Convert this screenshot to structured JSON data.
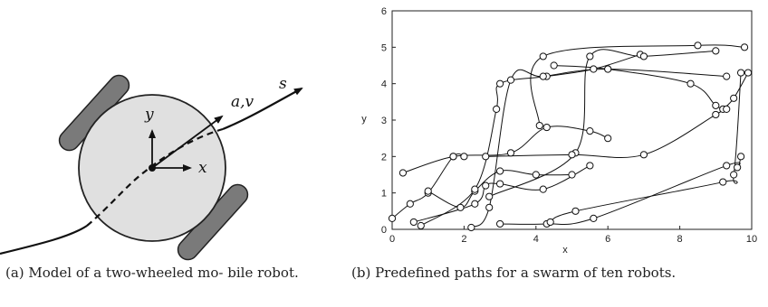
{
  "figure_a": {
    "labels": {
      "y": "y",
      "x": "x",
      "av": "a,v",
      "s": "s"
    },
    "caption": "(a) Model of a two-wheeled mo- bile robot."
  },
  "figure_b": {
    "caption": "(b) Predefined paths for a swarm of ten robots.",
    "chart_data": {
      "type": "line",
      "xlabel": "x",
      "ylabel": "y",
      "xlim": [
        0,
        10
      ],
      "ylim": [
        0,
        6
      ],
      "xticks": [
        0,
        2,
        4,
        6,
        8,
        10
      ],
      "yticks": [
        0,
        1,
        2,
        3,
        4,
        5,
        6
      ],
      "marker": "open-circle",
      "series": [
        {
          "points": [
            [
              0.0,
              0.3
            ],
            [
              0.5,
              0.7
            ],
            [
              1.0,
              1.0
            ],
            [
              1.7,
              2.0
            ],
            [
              2.0,
              2.0
            ]
          ]
        },
        {
          "points": [
            [
              0.3,
              1.55
            ],
            [
              1.7,
              2.0
            ],
            [
              3.3,
              2.1
            ],
            [
              4.3,
              2.8
            ],
            [
              5.5,
              2.7
            ],
            [
              6.0,
              2.5
            ]
          ]
        },
        {
          "points": [
            [
              0.6,
              0.2
            ],
            [
              2.3,
              0.7
            ],
            [
              2.6,
              1.2
            ],
            [
              3.0,
              1.25
            ],
            [
              4.2,
              1.1
            ],
            [
              5.5,
              1.75
            ]
          ]
        },
        {
          "points": [
            [
              1.0,
              1.05
            ],
            [
              1.9,
              0.6
            ],
            [
              2.3,
              1.05
            ],
            [
              3.0,
              1.6
            ],
            [
              4.0,
              1.5
            ],
            [
              5.0,
              1.5
            ]
          ]
        },
        {
          "points": [
            [
              0.8,
              0.1
            ],
            [
              2.3,
              1.1
            ],
            [
              2.9,
              3.3
            ],
            [
              3.0,
              4.0
            ],
            [
              4.3,
              4.2
            ],
            [
              5.6,
              4.4
            ],
            [
              6.9,
              4.8
            ]
          ]
        },
        {
          "points": [
            [
              2.2,
              0.05
            ],
            [
              2.7,
              0.6
            ],
            [
              3.3,
              4.1
            ],
            [
              4.2,
              4.2
            ],
            [
              6.0,
              4.4
            ],
            [
              9.3,
              4.2
            ]
          ]
        },
        {
          "points": [
            [
              3.0,
              0.15
            ],
            [
              4.3,
              0.15
            ],
            [
              5.6,
              0.3
            ],
            [
              9.3,
              1.75
            ],
            [
              9.6,
              1.7
            ],
            [
              9.7,
              2.0
            ]
          ]
        },
        {
          "points": [
            [
              4.4,
              0.2
            ],
            [
              5.1,
              0.5
            ],
            [
              9.2,
              1.3
            ],
            [
              9.5,
              1.5
            ],
            [
              9.7,
              4.3
            ]
          ]
        },
        {
          "points": [
            [
              2.7,
              0.9
            ],
            [
              5.1,
              2.1
            ],
            [
              5.5,
              4.75
            ],
            [
              7.0,
              4.75
            ],
            [
              9.0,
              4.9
            ]
          ]
        },
        {
          "points": [
            [
              4.1,
              2.85
            ],
            [
              4.2,
              4.75
            ],
            [
              8.5,
              5.05
            ],
            [
              9.8,
              5.0
            ]
          ]
        },
        {
          "points": [
            [
              2.6,
              2.0
            ],
            [
              5.0,
              2.05
            ],
            [
              7.0,
              2.05
            ],
            [
              9.0,
              3.15
            ],
            [
              9.2,
              3.3
            ],
            [
              9.5,
              3.6
            ],
            [
              9.9,
              4.3
            ]
          ]
        },
        {
          "points": [
            [
              4.5,
              4.5
            ],
            [
              6.0,
              4.4
            ],
            [
              8.3,
              4.0
            ],
            [
              9.0,
              3.4
            ],
            [
              9.3,
              3.3
            ]
          ]
        }
      ]
    }
  }
}
